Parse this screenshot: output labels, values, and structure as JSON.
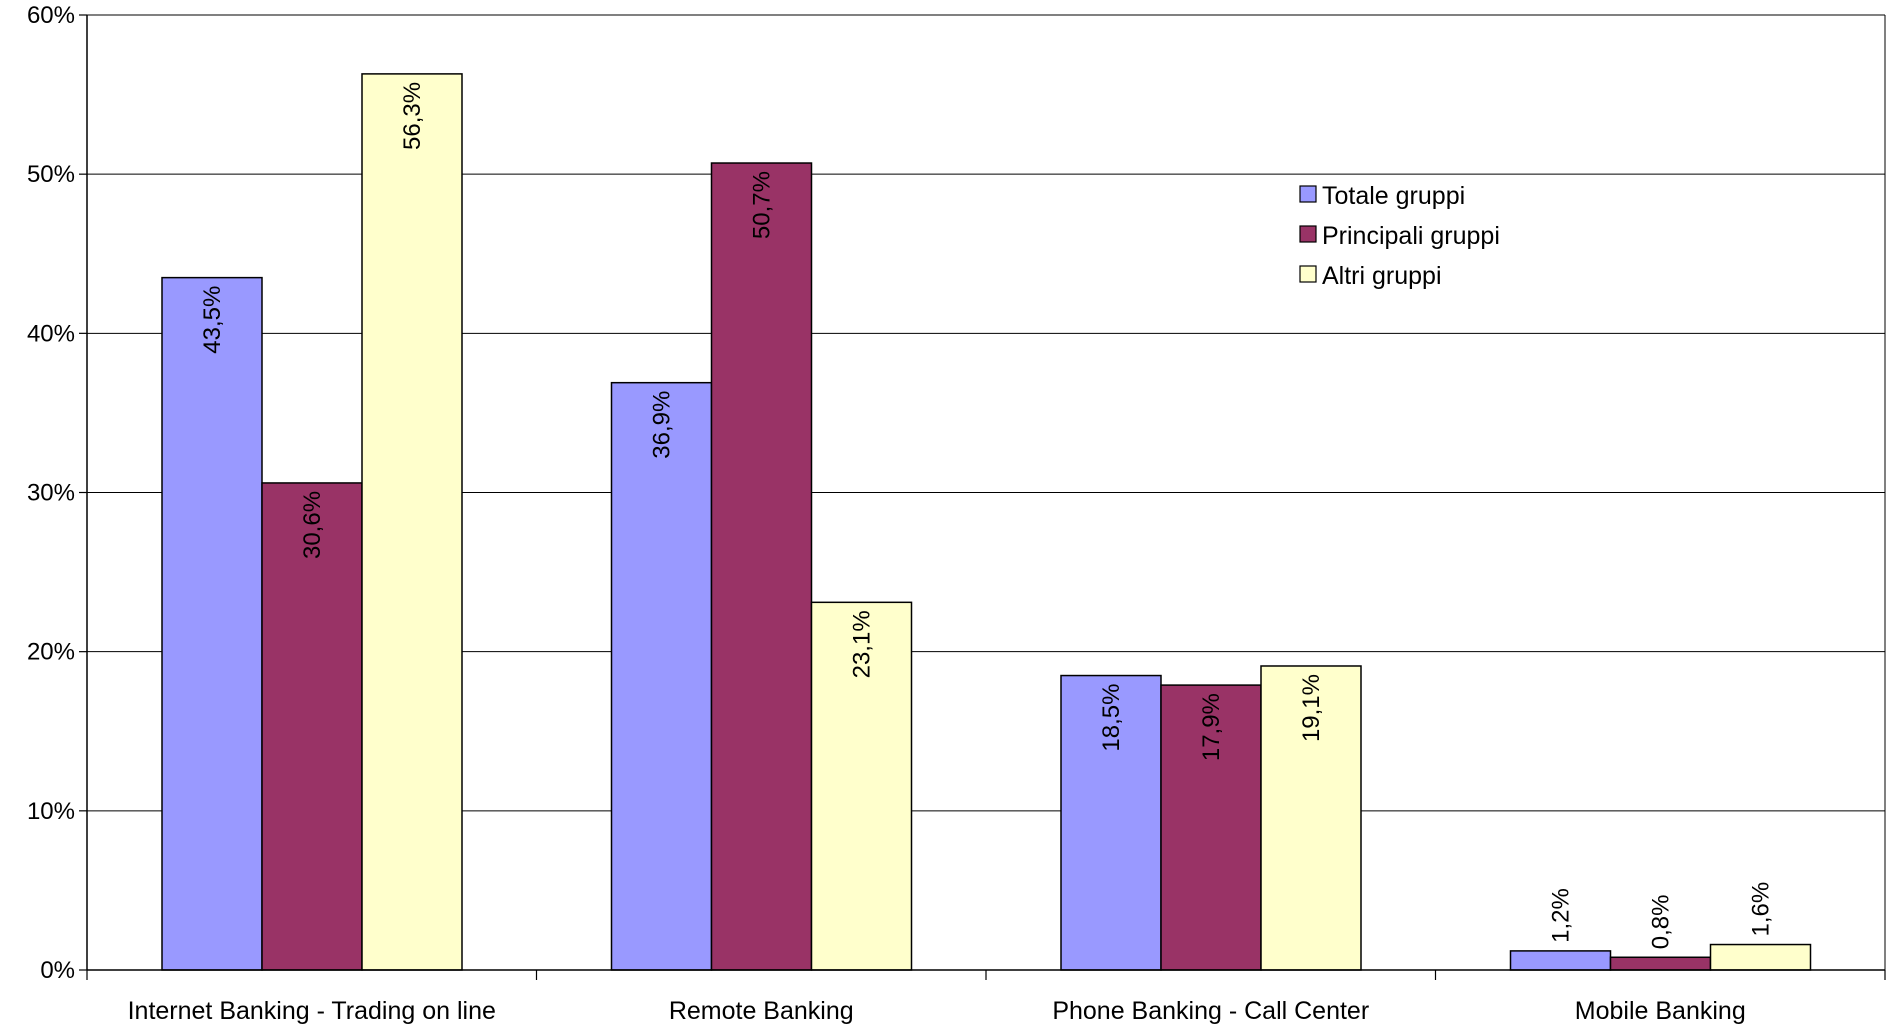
{
  "chart_data": {
    "type": "bar",
    "title": "",
    "xlabel": "",
    "ylabel": "",
    "ylim": [
      0,
      60
    ],
    "y_ticks": [
      "0%",
      "10%",
      "20%",
      "30%",
      "40%",
      "50%",
      "60%"
    ],
    "grid": true,
    "legend_position": "upper-right-inside",
    "categories": [
      "Internet Banking - Trading on line",
      "Remote Banking",
      "Phone Banking - Call Center",
      "Mobile Banking"
    ],
    "series": [
      {
        "name": "Totale gruppi",
        "color": "#9999FF",
        "values": [
          43.5,
          36.9,
          18.5,
          1.2
        ],
        "labels": [
          "43,5%",
          "36,9%",
          "18,5%",
          "1,2%"
        ]
      },
      {
        "name": "Principali gruppi",
        "color": "#993366",
        "values": [
          30.6,
          50.7,
          17.9,
          0.8
        ],
        "labels": [
          "30,6%",
          "50,7%",
          "17,9%",
          "0,8%"
        ]
      },
      {
        "name": "Altri gruppi",
        "color": "#FFFFCC",
        "values": [
          56.3,
          23.1,
          19.1,
          1.6
        ],
        "labels": [
          "56,3%",
          "23,1%",
          "19,1%",
          "1,6%"
        ]
      }
    ]
  }
}
